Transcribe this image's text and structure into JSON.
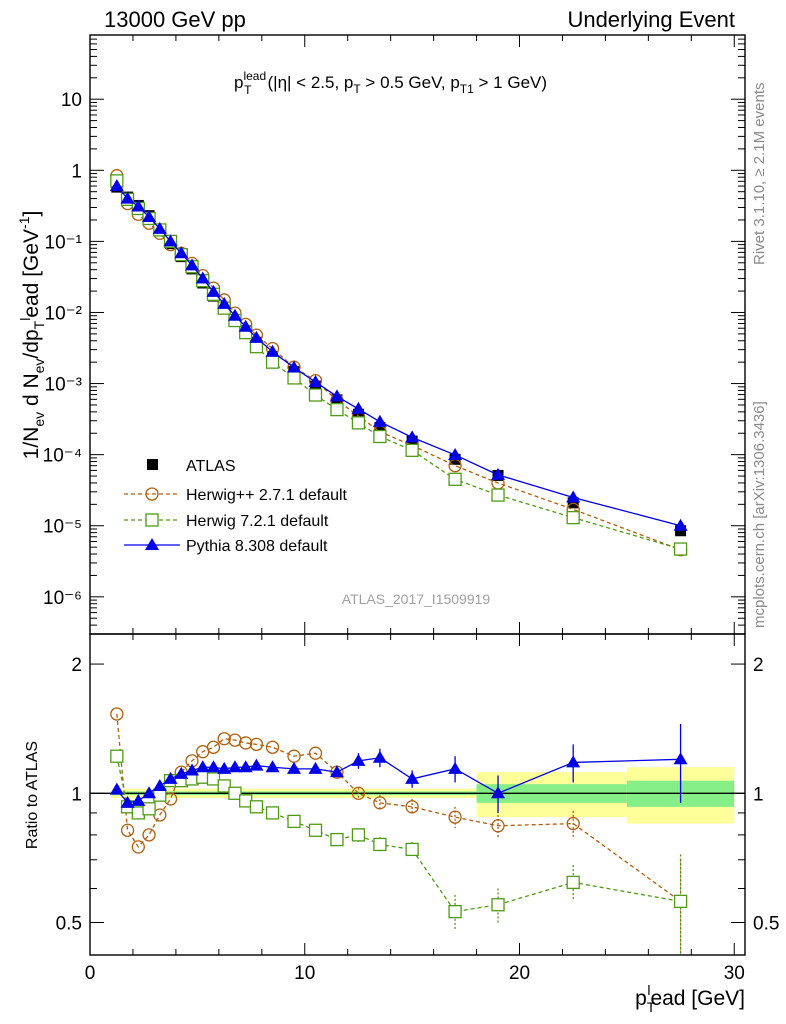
{
  "header": {
    "left": "13000 GeV pp",
    "right": "Underlying Event"
  },
  "side_labels": {
    "rivet": "Rivet 3.1.10, ≥ 2.1M events",
    "mcplots": "mcplots.cern.ch [arXiv:1306.3436]"
  },
  "watermark": "ATLAS_2017_I1509919",
  "chart_data": [
    {
      "type": "scatter",
      "panel": "main",
      "title_parts": {
        "p": "p",
        "sup": "lead",
        "sub": "T",
        "rest": "(|η| < 2.5, p",
        "sub2": "T",
        "rest2": " > 0.5 GeV, p",
        "sub3": "T1",
        "rest3": " > 1 GeV)"
      },
      "ylabel": "1/N_ev d N_ev/dp_T^lead [GeV^-1]",
      "ylabel_parts": {
        "a": "1/N",
        "a_sub": "ev",
        "b": " d N",
        "b_sub": "ev",
        "c": "/dp",
        "c_sub": "T",
        "c_sup": "l",
        "d": "ead [GeV",
        "d_sup": "-1",
        "e": "]"
      },
      "y_scale": "log",
      "ylim": [
        3e-07,
        80
      ],
      "xlim": [
        0,
        30.5
      ],
      "y_tick_labels": [
        "10⁻⁶",
        "10⁻⁵",
        "10⁻⁴",
        "10⁻³",
        "10⁻²",
        "10⁻¹",
        "1",
        "10"
      ],
      "legend_position": "lower-left",
      "x": [
        1.25,
        1.75,
        2.25,
        2.75,
        3.25,
        3.75,
        4.25,
        4.75,
        5.25,
        5.75,
        6.25,
        6.75,
        7.25,
        7.75,
        8.5,
        9.5,
        10.5,
        11.5,
        12.5,
        13.5,
        15.0,
        17.0,
        19.0,
        22.5,
        27.5
      ],
      "series": [
        {
          "name": "ATLAS",
          "marker": "square-filled",
          "color": "#000000",
          "line": "none",
          "values": [
            0.58,
            0.42,
            0.32,
            0.23,
            0.145,
            0.093,
            0.061,
            0.041,
            0.026,
            0.017,
            0.0115,
            0.0078,
            0.0055,
            0.0038,
            0.0024,
            0.00148,
            0.00092,
            0.00059,
            0.00037,
            0.00024,
            0.000155,
            8.6e-05,
            5.1e-05,
            2.1e-05,
            8.5e-06
          ]
        },
        {
          "name": "Herwig++ 2.7.1 default",
          "marker": "circle-open",
          "color": "#b05e0c",
          "line": "dashed",
          "values": [
            0.84,
            0.34,
            0.24,
            0.18,
            0.13,
            0.09,
            0.068,
            0.049,
            0.033,
            0.022,
            0.015,
            0.0098,
            0.0068,
            0.0048,
            0.0031,
            0.0017,
            0.0011,
            0.00058,
            0.00035,
            0.00021,
            0.000135,
            7e-05,
            4e-05,
            1.7e-05,
            4.6e-06
          ]
        },
        {
          "name": "Herwig 7.2.1 default",
          "marker": "square-open",
          "color": "#4f9a14",
          "line": "dashed",
          "values": [
            0.71,
            0.39,
            0.29,
            0.21,
            0.145,
            0.1,
            0.065,
            0.044,
            0.028,
            0.018,
            0.0115,
            0.0077,
            0.0052,
            0.0033,
            0.002,
            0.0012,
            0.00069,
            0.00043,
            0.00028,
            0.00018,
            0.000115,
            4.5e-05,
            2.7e-05,
            1.3e-05,
            4.7e-06
          ]
        },
        {
          "name": "Pythia 8.308 default",
          "marker": "triangle-filled",
          "color": "#0000e6",
          "line": "solid",
          "values": [
            0.6,
            0.4,
            0.31,
            0.22,
            0.15,
            0.1,
            0.068,
            0.046,
            0.03,
            0.0195,
            0.0132,
            0.009,
            0.0063,
            0.0044,
            0.0028,
            0.00168,
            0.00105,
            0.00066,
            0.00044,
            0.00029,
            0.000175,
            9.9e-05,
            5.2e-05,
            2.5e-05,
            1e-05
          ]
        }
      ]
    },
    {
      "type": "scatter",
      "panel": "ratio",
      "ylabel": "Ratio to ATLAS",
      "xlabel_parts": {
        "p": "p",
        "sub": "T",
        "sup": "l",
        "rest": "ead [GeV]"
      },
      "y_scale": "log",
      "ylim": [
        0.42,
        2.35
      ],
      "xlim": [
        0,
        30.5
      ],
      "x_ticks": [
        0,
        10,
        20,
        30
      ],
      "x_tick_labels": [
        "0",
        "10",
        "20",
        "30"
      ],
      "y_ticks": [
        0.5,
        1,
        2
      ],
      "y_tick_labels": [
        "0.5",
        "1",
        "2"
      ],
      "bands": [
        {
          "x0": 1.0,
          "x1": 18.0,
          "stat": 0.01,
          "total": 0.025
        },
        {
          "x0": 18.0,
          "x1": 25.0,
          "stat": 0.05,
          "total": 0.12
        },
        {
          "x0": 25.0,
          "x1": 30.0,
          "stat": 0.07,
          "total": 0.15
        }
      ],
      "band_colors": {
        "stat": "#86ee86",
        "total": "#ffff99"
      },
      "x": [
        1.25,
        1.75,
        2.25,
        2.75,
        3.25,
        3.75,
        4.25,
        4.75,
        5.25,
        5.75,
        6.25,
        6.75,
        7.25,
        7.75,
        8.5,
        9.5,
        10.5,
        11.5,
        12.5,
        13.5,
        15.0,
        17.0,
        19.0,
        22.5,
        27.5
      ],
      "series": [
        {
          "name": "Herwig++ 2.7.1 default",
          "marker": "circle-open",
          "color": "#b05e0c",
          "line": "dashed",
          "values": [
            1.53,
            0.82,
            0.75,
            0.8,
            0.89,
            0.97,
            1.12,
            1.19,
            1.25,
            1.28,
            1.34,
            1.33,
            1.31,
            1.3,
            1.28,
            1.22,
            1.24,
            1.12,
            1.0,
            0.95,
            0.93,
            0.88,
            0.84,
            0.85,
            0.56
          ],
          "err": [
            0.0,
            0.0,
            0.0,
            0.0,
            0.0,
            0.0,
            0.0,
            0.0,
            0.0,
            0.0,
            0.0,
            0.0,
            0.0,
            0.0,
            0.0,
            0.0,
            0.0,
            0.02,
            0.03,
            0.04,
            0.04,
            0.05,
            0.05,
            0.06,
            0.16
          ]
        },
        {
          "name": "Herwig 7.2.1 default",
          "marker": "square-open",
          "color": "#4f9a14",
          "line": "dashed",
          "values": [
            1.22,
            0.93,
            0.9,
            0.92,
            0.99,
            1.07,
            1.07,
            1.08,
            1.09,
            1.08,
            1.04,
            1.0,
            0.96,
            0.93,
            0.9,
            0.86,
            0.82,
            0.78,
            0.8,
            0.76,
            0.74,
            0.53,
            0.55,
            0.62,
            0.56
          ],
          "err": [
            0.0,
            0.0,
            0.0,
            0.0,
            0.0,
            0.0,
            0.0,
            0.0,
            0.0,
            0.0,
            0.0,
            0.0,
            0.0,
            0.0,
            0.0,
            0.0,
            0.0,
            0.02,
            0.03,
            0.03,
            0.03,
            0.05,
            0.05,
            0.06,
            0.14
          ]
        },
        {
          "name": "Pythia 8.308 default",
          "marker": "triangle-filled",
          "color": "#0000e6",
          "line": "solid",
          "values": [
            1.02,
            0.95,
            0.96,
            1.0,
            1.04,
            1.08,
            1.11,
            1.13,
            1.15,
            1.15,
            1.14,
            1.15,
            1.15,
            1.16,
            1.15,
            1.14,
            1.14,
            1.12,
            1.19,
            1.21,
            1.08,
            1.14,
            1.0,
            1.18,
            1.2
          ],
          "err": [
            0.0,
            0.0,
            0.0,
            0.0,
            0.0,
            0.0,
            0.0,
            0.0,
            0.0,
            0.0,
            0.0,
            0.0,
            0.0,
            0.0,
            0.0,
            0.0,
            0.0,
            0.03,
            0.05,
            0.06,
            0.05,
            0.08,
            0.1,
            0.12,
            0.25
          ]
        }
      ]
    }
  ]
}
